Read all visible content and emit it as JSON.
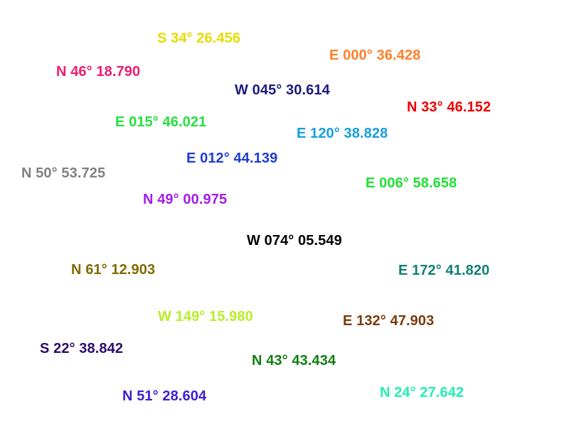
{
  "labels": [
    {
      "id": "s34",
      "text": "S 34° 26.456",
      "color": "#e6dc00"
    },
    {
      "id": "e000",
      "text": "E 000° 36.428",
      "color": "#ff7f27"
    },
    {
      "id": "n46",
      "text": "N 46° 18.790",
      "color": "#ee1c6f"
    },
    {
      "id": "w045",
      "text": "W 045° 30.614",
      "color": "#1b1b80"
    },
    {
      "id": "n33",
      "text": "N 33° 46.152",
      "color": "#ee0000"
    },
    {
      "id": "e015",
      "text": "E 015° 46.021",
      "color": "#24e040"
    },
    {
      "id": "e120",
      "text": "E 120° 38.828",
      "color": "#14a0dc"
    },
    {
      "id": "e012",
      "text": "E 012° 44.139",
      "color": "#1e3cd8"
    },
    {
      "id": "n50",
      "text": "N 50° 53.725",
      "color": "#808080"
    },
    {
      "id": "e006",
      "text": "E 006° 58.658",
      "color": "#22e033"
    },
    {
      "id": "n49",
      "text": "N 49° 00.975",
      "color": "#a31de8"
    },
    {
      "id": "w074",
      "text": "W 074° 05.549",
      "color": "#000000"
    },
    {
      "id": "n61",
      "text": "N 61° 12.903",
      "color": "#7f6a00"
    },
    {
      "id": "e172",
      "text": "E 172° 41.820",
      "color": "#0f7f73"
    },
    {
      "id": "w149",
      "text": "W 149° 15.980",
      "color": "#b8ee26"
    },
    {
      "id": "e132",
      "text": "E 132° 47.903",
      "color": "#7a3a0a"
    },
    {
      "id": "s22",
      "text": "S 22° 38.842",
      "color": "#2a0a6e"
    },
    {
      "id": "n43",
      "text": "N 43° 43.434",
      "color": "#0f7f10"
    },
    {
      "id": "n51",
      "text": "N 51° 28.604",
      "color": "#3a1fd0"
    },
    {
      "id": "n24",
      "text": "N 24° 27.642",
      "color": "#20f0b4"
    }
  ]
}
